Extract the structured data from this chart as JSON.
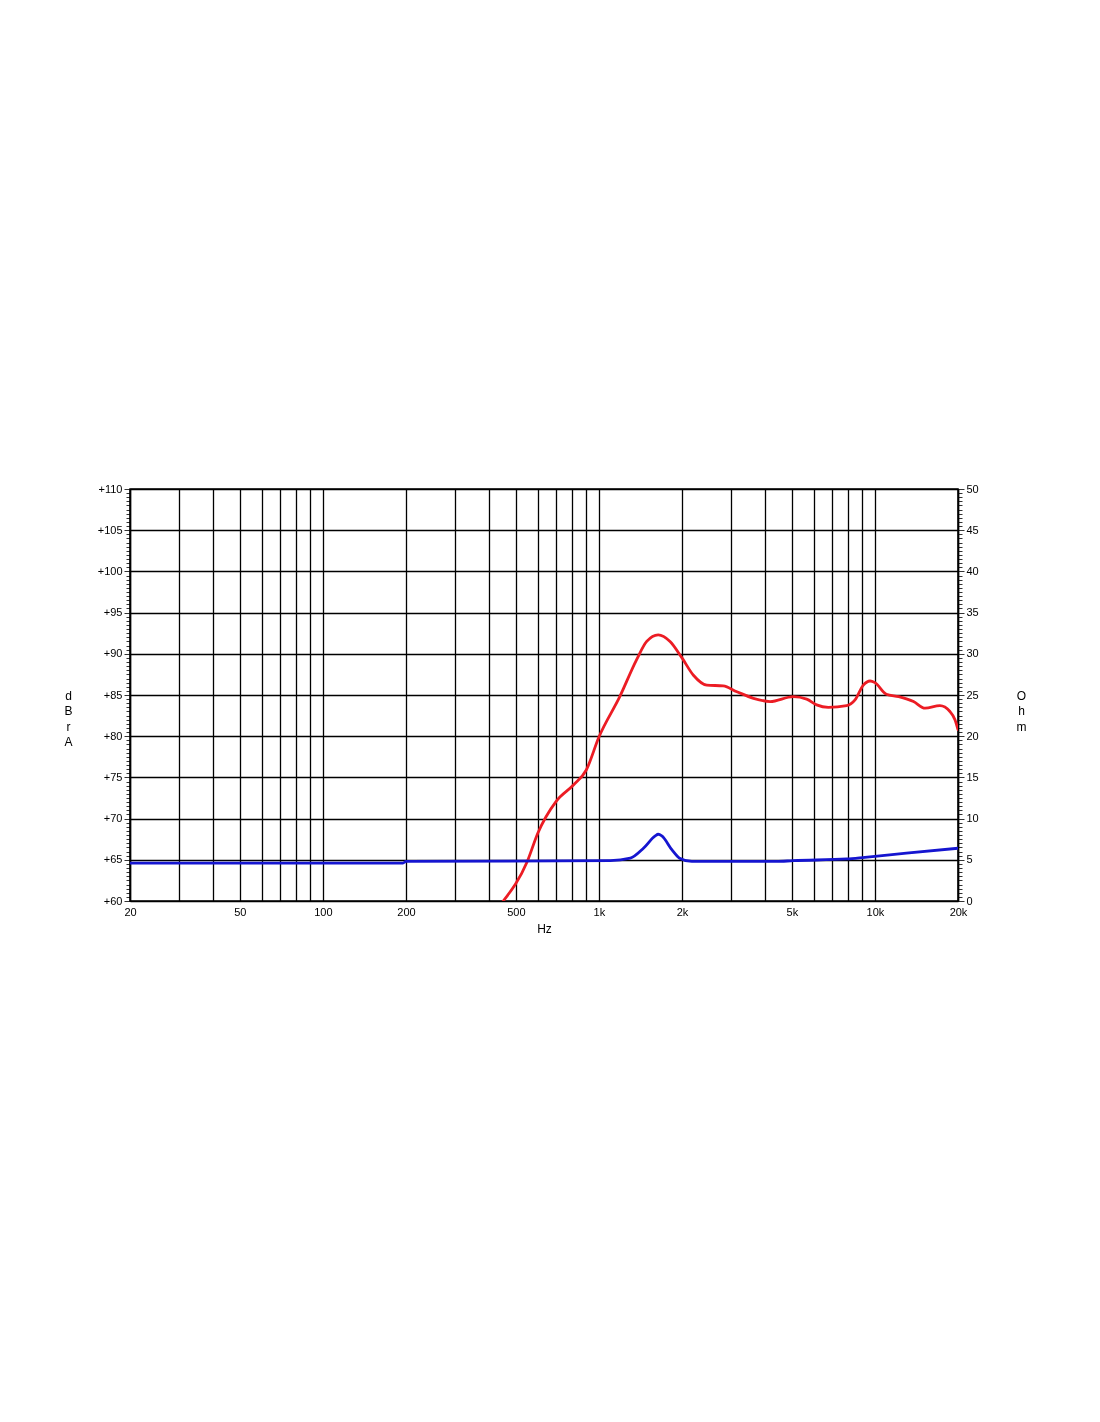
{
  "chart_data": {
    "type": "line",
    "xlabel": "Hz",
    "ylabel": "dBr A",
    "y2label": "Ohm",
    "log": "x",
    "grid": true,
    "xlim": [
      20,
      20000
    ],
    "xticks": [
      20,
      {
        "value": 30,
        "label": null
      },
      {
        "value": 40,
        "label": null
      },
      50,
      {
        "value": 60,
        "label": null
      },
      {
        "value": 70,
        "label": null
      },
      {
        "value": 80,
        "label": null
      },
      {
        "value": 90,
        "label": null
      },
      100,
      200,
      {
        "value": 300,
        "label": null
      },
      {
        "value": 400,
        "label": null
      },
      500,
      {
        "value": 600,
        "label": null
      },
      {
        "value": 700,
        "label": null
      },
      {
        "value": 800,
        "label": null
      },
      {
        "value": 900,
        "label": null
      },
      {
        "value": 1000,
        "label": "1k"
      },
      {
        "value": 2000,
        "label": "2k"
      },
      {
        "value": 3000,
        "label": null
      },
      {
        "value": 4000,
        "label": null
      },
      {
        "value": 5000,
        "label": "5k"
      },
      {
        "value": 6000,
        "label": null
      },
      {
        "value": 7000,
        "label": null
      },
      {
        "value": 8000,
        "label": null
      },
      {
        "value": 9000,
        "label": null
      },
      {
        "value": 10000,
        "label": "10k"
      },
      {
        "value": 20000,
        "label": "20k"
      }
    ],
    "ylim": [
      60,
      110
    ],
    "yticks": [
      {
        "value": 60,
        "label": "+60"
      },
      {
        "value": 60.5,
        "label": null
      },
      {
        "value": 61,
        "label": null
      },
      {
        "value": 61.5,
        "label": null
      },
      {
        "value": 62,
        "label": null
      },
      {
        "value": 62.5,
        "label": null
      },
      {
        "value": 63,
        "label": null
      },
      {
        "value": 63.5,
        "label": null
      },
      {
        "value": 64,
        "label": null
      },
      {
        "value": 64.5,
        "label": null
      },
      {
        "value": 65,
        "label": "+65"
      },
      {
        "value": 65.5,
        "label": null
      },
      {
        "value": 66,
        "label": null
      },
      {
        "value": 66.5,
        "label": null
      },
      {
        "value": 67,
        "label": null
      },
      {
        "value": 67.5,
        "label": null
      },
      {
        "value": 68,
        "label": null
      },
      {
        "value": 68.5,
        "label": null
      },
      {
        "value": 69,
        "label": null
      },
      {
        "value": 69.5,
        "label": null
      },
      {
        "value": 70,
        "label": "+70"
      },
      {
        "value": 70.5,
        "label": null
      },
      {
        "value": 71,
        "label": null
      },
      {
        "value": 71.5,
        "label": null
      },
      {
        "value": 72,
        "label": null
      },
      {
        "value": 72.5,
        "label": null
      },
      {
        "value": 73,
        "label": null
      },
      {
        "value": 73.5,
        "label": null
      },
      {
        "value": 74,
        "label": null
      },
      {
        "value": 74.5,
        "label": null
      },
      {
        "value": 75,
        "label": "+75"
      },
      {
        "value": 75.5,
        "label": null
      },
      {
        "value": 76,
        "label": null
      },
      {
        "value": 76.5,
        "label": null
      },
      {
        "value": 77,
        "label": null
      },
      {
        "value": 77.5,
        "label": null
      },
      {
        "value": 78,
        "label": null
      },
      {
        "value": 78.5,
        "label": null
      },
      {
        "value": 79,
        "label": null
      },
      {
        "value": 79.5,
        "label": null
      },
      {
        "value": 80,
        "label": "+80"
      },
      {
        "value": 80.5,
        "label": null
      },
      {
        "value": 81,
        "label": null
      },
      {
        "value": 81.5,
        "label": null
      },
      {
        "value": 82,
        "label": null
      },
      {
        "value": 82.5,
        "label": null
      },
      {
        "value": 83,
        "label": null
      },
      {
        "value": 83.5,
        "label": null
      },
      {
        "value": 84,
        "label": null
      },
      {
        "value": 84.5,
        "label": null
      },
      {
        "value": 85,
        "label": "+85"
      },
      {
        "value": 85.5,
        "label": null
      },
      {
        "value": 86,
        "label": null
      },
      {
        "value": 86.5,
        "label": null
      },
      {
        "value": 87,
        "label": null
      },
      {
        "value": 87.5,
        "label": null
      },
      {
        "value": 88,
        "label": null
      },
      {
        "value": 88.5,
        "label": null
      },
      {
        "value": 89,
        "label": null
      },
      {
        "value": 89.5,
        "label": null
      },
      {
        "value": 90,
        "label": "+90"
      },
      {
        "value": 90.5,
        "label": null
      },
      {
        "value": 91,
        "label": null
      },
      {
        "value": 91.5,
        "label": null
      },
      {
        "value": 92,
        "label": null
      },
      {
        "value": 92.5,
        "label": null
      },
      {
        "value": 93,
        "label": null
      },
      {
        "value": 93.5,
        "label": null
      },
      {
        "value": 94,
        "label": null
      },
      {
        "value": 94.5,
        "label": null
      },
      {
        "value": 95,
        "label": "+95"
      },
      {
        "value": 95.5,
        "label": null
      },
      {
        "value": 96,
        "label": null
      },
      {
        "value": 96.5,
        "label": null
      },
      {
        "value": 97,
        "label": null
      },
      {
        "value": 97.5,
        "label": null
      },
      {
        "value": 98,
        "label": null
      },
      {
        "value": 98.5,
        "label": null
      },
      {
        "value": 99,
        "label": null
      },
      {
        "value": 99.5,
        "label": null
      },
      {
        "value": 100,
        "label": "+100"
      },
      {
        "value": 100.5,
        "label": null
      },
      {
        "value": 101,
        "label": null
      },
      {
        "value": 101.5,
        "label": null
      },
      {
        "value": 102,
        "label": null
      },
      {
        "value": 102.5,
        "label": null
      },
      {
        "value": 103,
        "label": null
      },
      {
        "value": 103.5,
        "label": null
      },
      {
        "value": 104,
        "label": null
      },
      {
        "value": 104.5,
        "label": null
      },
      {
        "value": 105,
        "label": "+105"
      },
      {
        "value": 105.5,
        "label": null
      },
      {
        "value": 106,
        "label": null
      },
      {
        "value": 106.5,
        "label": null
      },
      {
        "value": 107,
        "label": null
      },
      {
        "value": 107.5,
        "label": null
      },
      {
        "value": 108,
        "label": null
      },
      {
        "value": 108.5,
        "label": null
      },
      {
        "value": 109,
        "label": null
      },
      {
        "value": 109.5,
        "label": null
      },
      {
        "value": 110,
        "label": "+110"
      }
    ],
    "y2lim": [
      0,
      50
    ],
    "y2ticks": [
      0,
      {
        "value": 0.5,
        "label": null
      },
      {
        "value": 1,
        "label": null
      },
      {
        "value": 1.5,
        "label": null
      },
      {
        "value": 2,
        "label": null
      },
      {
        "value": 2.5,
        "label": null
      },
      {
        "value": 3,
        "label": null
      },
      {
        "value": 3.5,
        "label": null
      },
      {
        "value": 4,
        "label": null
      },
      {
        "value": 4.5,
        "label": null
      },
      5,
      {
        "value": 5.5,
        "label": null
      },
      {
        "value": 6,
        "label": null
      },
      {
        "value": 6.5,
        "label": null
      },
      {
        "value": 7,
        "label": null
      },
      {
        "value": 7.5,
        "label": null
      },
      {
        "value": 8,
        "label": null
      },
      {
        "value": 8.5,
        "label": null
      },
      {
        "value": 9,
        "label": null
      },
      {
        "value": 9.5,
        "label": null
      },
      10,
      {
        "value": 10.5,
        "label": null
      },
      {
        "value": 11,
        "label": null
      },
      {
        "value": 11.5,
        "label": null
      },
      {
        "value": 12,
        "label": null
      },
      {
        "value": 12.5,
        "label": null
      },
      {
        "value": 13,
        "label": null
      },
      {
        "value": 13.5,
        "label": null
      },
      {
        "value": 14,
        "label": null
      },
      {
        "value": 14.5,
        "label": null
      },
      15,
      {
        "value": 15.5,
        "label": null
      },
      {
        "value": 16,
        "label": null
      },
      {
        "value": 16.5,
        "label": null
      },
      {
        "value": 17,
        "label": null
      },
      {
        "value": 17.5,
        "label": null
      },
      {
        "value": 18,
        "label": null
      },
      {
        "value": 18.5,
        "label": null
      },
      {
        "value": 19,
        "label": null
      },
      {
        "value": 19.5,
        "label": null
      },
      20,
      {
        "value": 20.5,
        "label": null
      },
      {
        "value": 21,
        "label": null
      },
      {
        "value": 21.5,
        "label": null
      },
      {
        "value": 22,
        "label": null
      },
      {
        "value": 22.5,
        "label": null
      },
      {
        "value": 23,
        "label": null
      },
      {
        "value": 23.5,
        "label": null
      },
      {
        "value": 24,
        "label": null
      },
      {
        "value": 24.5,
        "label": null
      },
      25,
      {
        "value": 25.5,
        "label": null
      },
      {
        "value": 26,
        "label": null
      },
      {
        "value": 26.5,
        "label": null
      },
      {
        "value": 27,
        "label": null
      },
      {
        "value": 27.5,
        "label": null
      },
      {
        "value": 28,
        "label": null
      },
      {
        "value": 28.5,
        "label": null
      },
      {
        "value": 29,
        "label": null
      },
      {
        "value": 29.5,
        "label": null
      },
      30,
      {
        "value": 30.5,
        "label": null
      },
      {
        "value": 31,
        "label": null
      },
      {
        "value": 31.5,
        "label": null
      },
      {
        "value": 32,
        "label": null
      },
      {
        "value": 32.5,
        "label": null
      },
      {
        "value": 33,
        "label": null
      },
      {
        "value": 33.5,
        "label": null
      },
      {
        "value": 34,
        "label": null
      },
      {
        "value": 34.5,
        "label": null
      },
      35,
      {
        "value": 35.5,
        "label": null
      },
      {
        "value": 36,
        "label": null
      },
      {
        "value": 36.5,
        "label": null
      },
      {
        "value": 37,
        "label": null
      },
      {
        "value": 37.5,
        "label": null
      },
      {
        "value": 38,
        "label": null
      },
      {
        "value": 38.5,
        "label": null
      },
      {
        "value": 39,
        "label": null
      },
      {
        "value": 39.5,
        "label": null
      },
      40,
      {
        "value": 40.5,
        "label": null
      },
      {
        "value": 41,
        "label": null
      },
      {
        "value": 41.5,
        "label": null
      },
      {
        "value": 42,
        "label": null
      },
      {
        "value": 42.5,
        "label": null
      },
      {
        "value": 43,
        "label": null
      },
      {
        "value": 43.5,
        "label": null
      },
      {
        "value": 44,
        "label": null
      },
      {
        "value": 44.5,
        "label": null
      },
      45,
      {
        "value": 45.5,
        "label": null
      },
      {
        "value": 46,
        "label": null
      },
      {
        "value": 46.5,
        "label": null
      },
      {
        "value": 47,
        "label": null
      },
      {
        "value": 47.5,
        "label": null
      },
      {
        "value": 48,
        "label": null
      },
      {
        "value": 48.5,
        "label": null
      },
      {
        "value": 49,
        "label": null
      },
      {
        "value": 49.5,
        "label": null
      },
      50
    ],
    "series": [
      {
        "color": "#ec1c24",
        "x": [
          450,
          550,
          600,
          700,
          810,
          900,
          1000,
          1190,
          1370,
          1490,
          1640,
          1810,
          2000,
          2200,
          2460,
          2820,
          3160,
          3630,
          4170,
          5060,
          5660,
          6150,
          6780,
          7900,
          8470,
          9080,
          9600,
          10000,
          11000,
          12200,
          13800,
          15200,
          17200,
          18700,
          19500,
          20000
        ],
        "values": [
          60,
          64.8,
          68.2,
          72.1,
          74.1,
          75.9,
          79.9,
          84.8,
          89.3,
          91.5,
          92.3,
          91.5,
          89.5,
          87.4,
          86.2,
          86.1,
          85.4,
          84.6,
          84.2,
          84.8,
          84.5,
          83.8,
          83.5,
          83.7,
          84.4,
          86.2,
          86.7,
          86.5,
          85.1,
          84.8,
          84.2,
          83.4,
          83.7,
          83.0,
          82.0,
          80.8
        ]
      },
      {
        "color": "#1515d0",
        "axis": "y2",
        "x": [
          20,
          195,
          200,
          1100,
          1300,
          1450,
          1600,
          1640,
          1690,
          1840,
          1960,
          2170,
          4400,
          5060,
          7900,
          9200,
          13000,
          20000
        ],
        "values": [
          4.6,
          4.6,
          4.8,
          4.9,
          5.2,
          6.4,
          7.9,
          8.1,
          7.9,
          6.2,
          5.2,
          4.8,
          4.8,
          4.9,
          5.1,
          5.3,
          5.8,
          6.4
        ]
      }
    ]
  }
}
